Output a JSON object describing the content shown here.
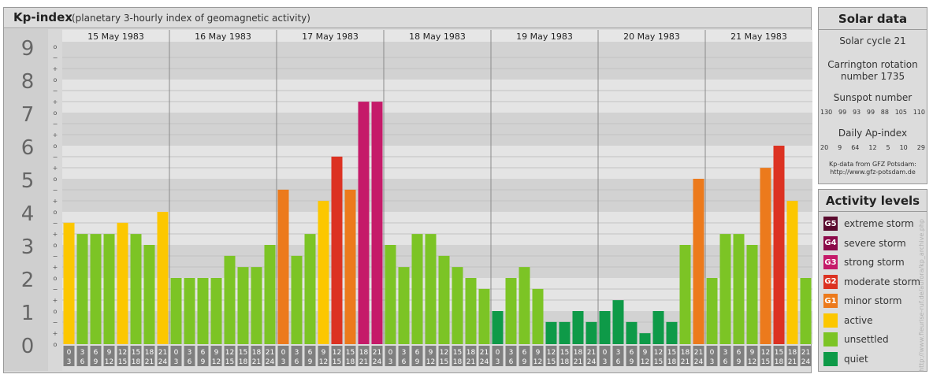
{
  "title": {
    "main": "Kp-index",
    "subtitle": "(planetary 3-hourly index of geomagnetic activity)"
  },
  "chart_data": {
    "type": "bar",
    "ylim": [
      0,
      9
    ],
    "y_ticks": [
      "0",
      "1",
      "2",
      "3",
      "4",
      "5",
      "6",
      "7",
      "8",
      "9"
    ],
    "sub_ticks": [
      "o",
      "+",
      "−",
      "o",
      "+",
      "−",
      "o",
      "+",
      "−",
      "o",
      "+",
      "−",
      "o",
      "+",
      "−",
      "o",
      "+",
      "−",
      "o",
      "+",
      "−",
      "o",
      "+",
      "−",
      "o",
      "+",
      "−",
      "o"
    ],
    "days": [
      "15 May 1983",
      "16 May 1983",
      "17 May 1983",
      "18 May 1983",
      "19 May 1983",
      "20 May 1983",
      "21 May 1983"
    ],
    "interval_start": [
      "0",
      "3",
      "6",
      "9",
      "12",
      "15",
      "18",
      "21"
    ],
    "interval_end": [
      "3",
      "6",
      "9",
      "12",
      "15",
      "18",
      "21",
      "24"
    ],
    "values": [
      [
        3.67,
        3.33,
        3.33,
        3.33,
        3.67,
        3.33,
        3.0,
        4.0
      ],
      [
        2.0,
        2.0,
        2.0,
        2.0,
        2.67,
        2.33,
        2.33,
        3.0
      ],
      [
        4.67,
        2.67,
        3.33,
        4.33,
        5.67,
        4.67,
        7.33,
        7.33
      ],
      [
        3.0,
        2.33,
        3.33,
        3.33,
        2.67,
        2.33,
        2.0,
        1.67
      ],
      [
        1.0,
        2.0,
        2.33,
        1.67,
        0.67,
        0.67,
        1.0,
        0.67
      ],
      [
        1.0,
        1.33,
        0.67,
        0.33,
        1.0,
        0.67,
        3.0,
        5.0
      ],
      [
        2.0,
        3.33,
        3.33,
        3.0,
        5.33,
        6.0,
        4.33,
        2.0
      ]
    ],
    "level_colors": {
      "quiet": "#0e9a48",
      "unsettled": "#7cc425",
      "active": "#fcc700",
      "G1": "#ec7a1c",
      "G2": "#dc3222",
      "G3": "#c51a69",
      "G4": "#8c0a4a",
      "G5": "#5a0a2e"
    }
  },
  "solar": {
    "title": "Solar data",
    "cycle": "Solar cycle 21",
    "carrington_1": "Carrington rotation",
    "carrington_2": "number 1735",
    "sunspot_label": "Sunspot number",
    "sunspot_values": [
      "130",
      "99",
      "93",
      "99",
      "88",
      "105",
      "110"
    ],
    "ap_label": "Daily Ap-index",
    "ap_values": [
      "20",
      "9",
      "64",
      "12",
      "5",
      "10",
      "29"
    ],
    "credit_1": "Kp-data from GFZ Potsdam:",
    "credit_2": "http://www.gfz-potsdam.de"
  },
  "activity": {
    "title": "Activity levels",
    "items": [
      {
        "code": "G5",
        "label": "extreme storm",
        "color": "#5a0a2e"
      },
      {
        "code": "G4",
        "label": "severe storm",
        "color": "#8c0a4a"
      },
      {
        "code": "G3",
        "label": "strong storm",
        "color": "#c51a69"
      },
      {
        "code": "G2",
        "label": "moderate storm",
        "color": "#dc3222"
      },
      {
        "code": "G1",
        "label": "minor storm",
        "color": "#ec7a1c"
      },
      {
        "code": "",
        "label": "active",
        "color": "#fcc700"
      },
      {
        "code": "",
        "label": "unsettled",
        "color": "#7cc425"
      },
      {
        "code": "",
        "label": "quiet",
        "color": "#0e9a48"
      }
    ]
  },
  "watermark": "http://www.fieurise-ruf.de/aurora/kp_archive.php"
}
